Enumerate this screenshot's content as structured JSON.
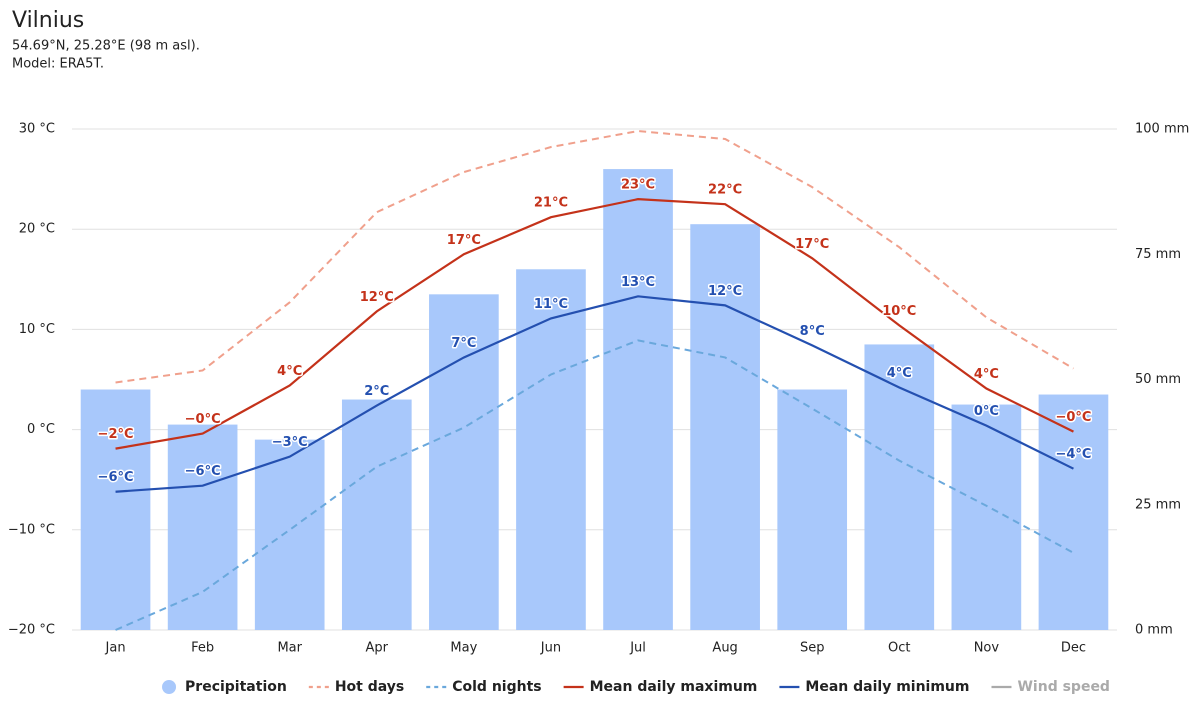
{
  "chart_data": {
    "type": "bar_line",
    "title": "Vilnius",
    "subtitle": [
      "54.69°N, 25.28°E (98 m asl).",
      "Model: ERA5T."
    ],
    "categories": [
      "Jan",
      "Feb",
      "Mar",
      "Apr",
      "May",
      "Jun",
      "Jul",
      "Aug",
      "Sep",
      "Oct",
      "Nov",
      "Dec"
    ],
    "ylim": [
      -20,
      30
    ],
    "yticks": [
      {
        "value": -20,
        "label": "−20 °C"
      },
      {
        "value": -10,
        "label": "−10 °C"
      },
      {
        "value": 0,
        "label": "0 °C"
      },
      {
        "value": 10,
        "label": "10 °C"
      },
      {
        "value": 20,
        "label": "20 °C"
      },
      {
        "value": 30,
        "label": "30 °C"
      }
    ],
    "y2lim": [
      0,
      100
    ],
    "y2ticks": [
      {
        "value": 0,
        "label": "0 mm"
      },
      {
        "value": 25,
        "label": "25 mm"
      },
      {
        "value": 50,
        "label": "50 mm"
      },
      {
        "value": 75,
        "label": "75 mm"
      },
      {
        "value": 100,
        "label": "100 mm"
      }
    ],
    "grid": true,
    "legend": "bottom",
    "series": [
      {
        "name": "Precipitation",
        "type": "bar",
        "axis": "y2",
        "color": "#a8c8fb",
        "values": [
          48,
          41,
          38,
          46,
          67,
          72,
          92,
          81,
          48,
          57,
          45,
          47
        ]
      },
      {
        "name": "Hot days",
        "type": "line",
        "dashed": true,
        "color": "#f0a08c",
        "values": [
          4.7,
          5.9,
          12.7,
          21.7,
          25.7,
          28.2,
          29.8,
          29.0,
          24.2,
          18.2,
          11.2,
          6.1
        ]
      },
      {
        "name": "Cold nights",
        "type": "line",
        "dashed": true,
        "color": "#6aa8dc",
        "values": [
          -20.0,
          -16.2,
          -10.0,
          -3.7,
          0.2,
          5.5,
          8.9,
          7.2,
          2.1,
          -3.1,
          -7.6,
          -12.3
        ]
      },
      {
        "name": "Mean daily maximum",
        "type": "line",
        "color": "#c4321a",
        "values": [
          -1.9,
          -0.4,
          4.4,
          11.8,
          17.5,
          21.2,
          23.0,
          22.5,
          17.1,
          10.4,
          4.1,
          -0.2
        ],
        "value_labels": [
          "−2°C",
          "−0°C",
          "4°C",
          "12°C",
          "17°C",
          "21°C",
          "23°C",
          "22°C",
          "17°C",
          "10°C",
          "4°C",
          "−0°C"
        ]
      },
      {
        "name": "Mean daily minimum",
        "type": "line",
        "color": "#2450b0",
        "values": [
          -6.2,
          -5.6,
          -2.7,
          2.4,
          7.2,
          11.1,
          13.3,
          12.4,
          8.4,
          4.2,
          0.4,
          -3.9
        ],
        "value_labels": [
          "−6°C",
          "−6°C",
          "−3°C",
          "2°C",
          "7°C",
          "11°C",
          "13°C",
          "12°C",
          "8°C",
          "4°C",
          "0°C",
          "−4°C"
        ]
      },
      {
        "name": "Wind speed",
        "type": "line",
        "hidden": true,
        "color": "#aaaaaa"
      }
    ]
  }
}
